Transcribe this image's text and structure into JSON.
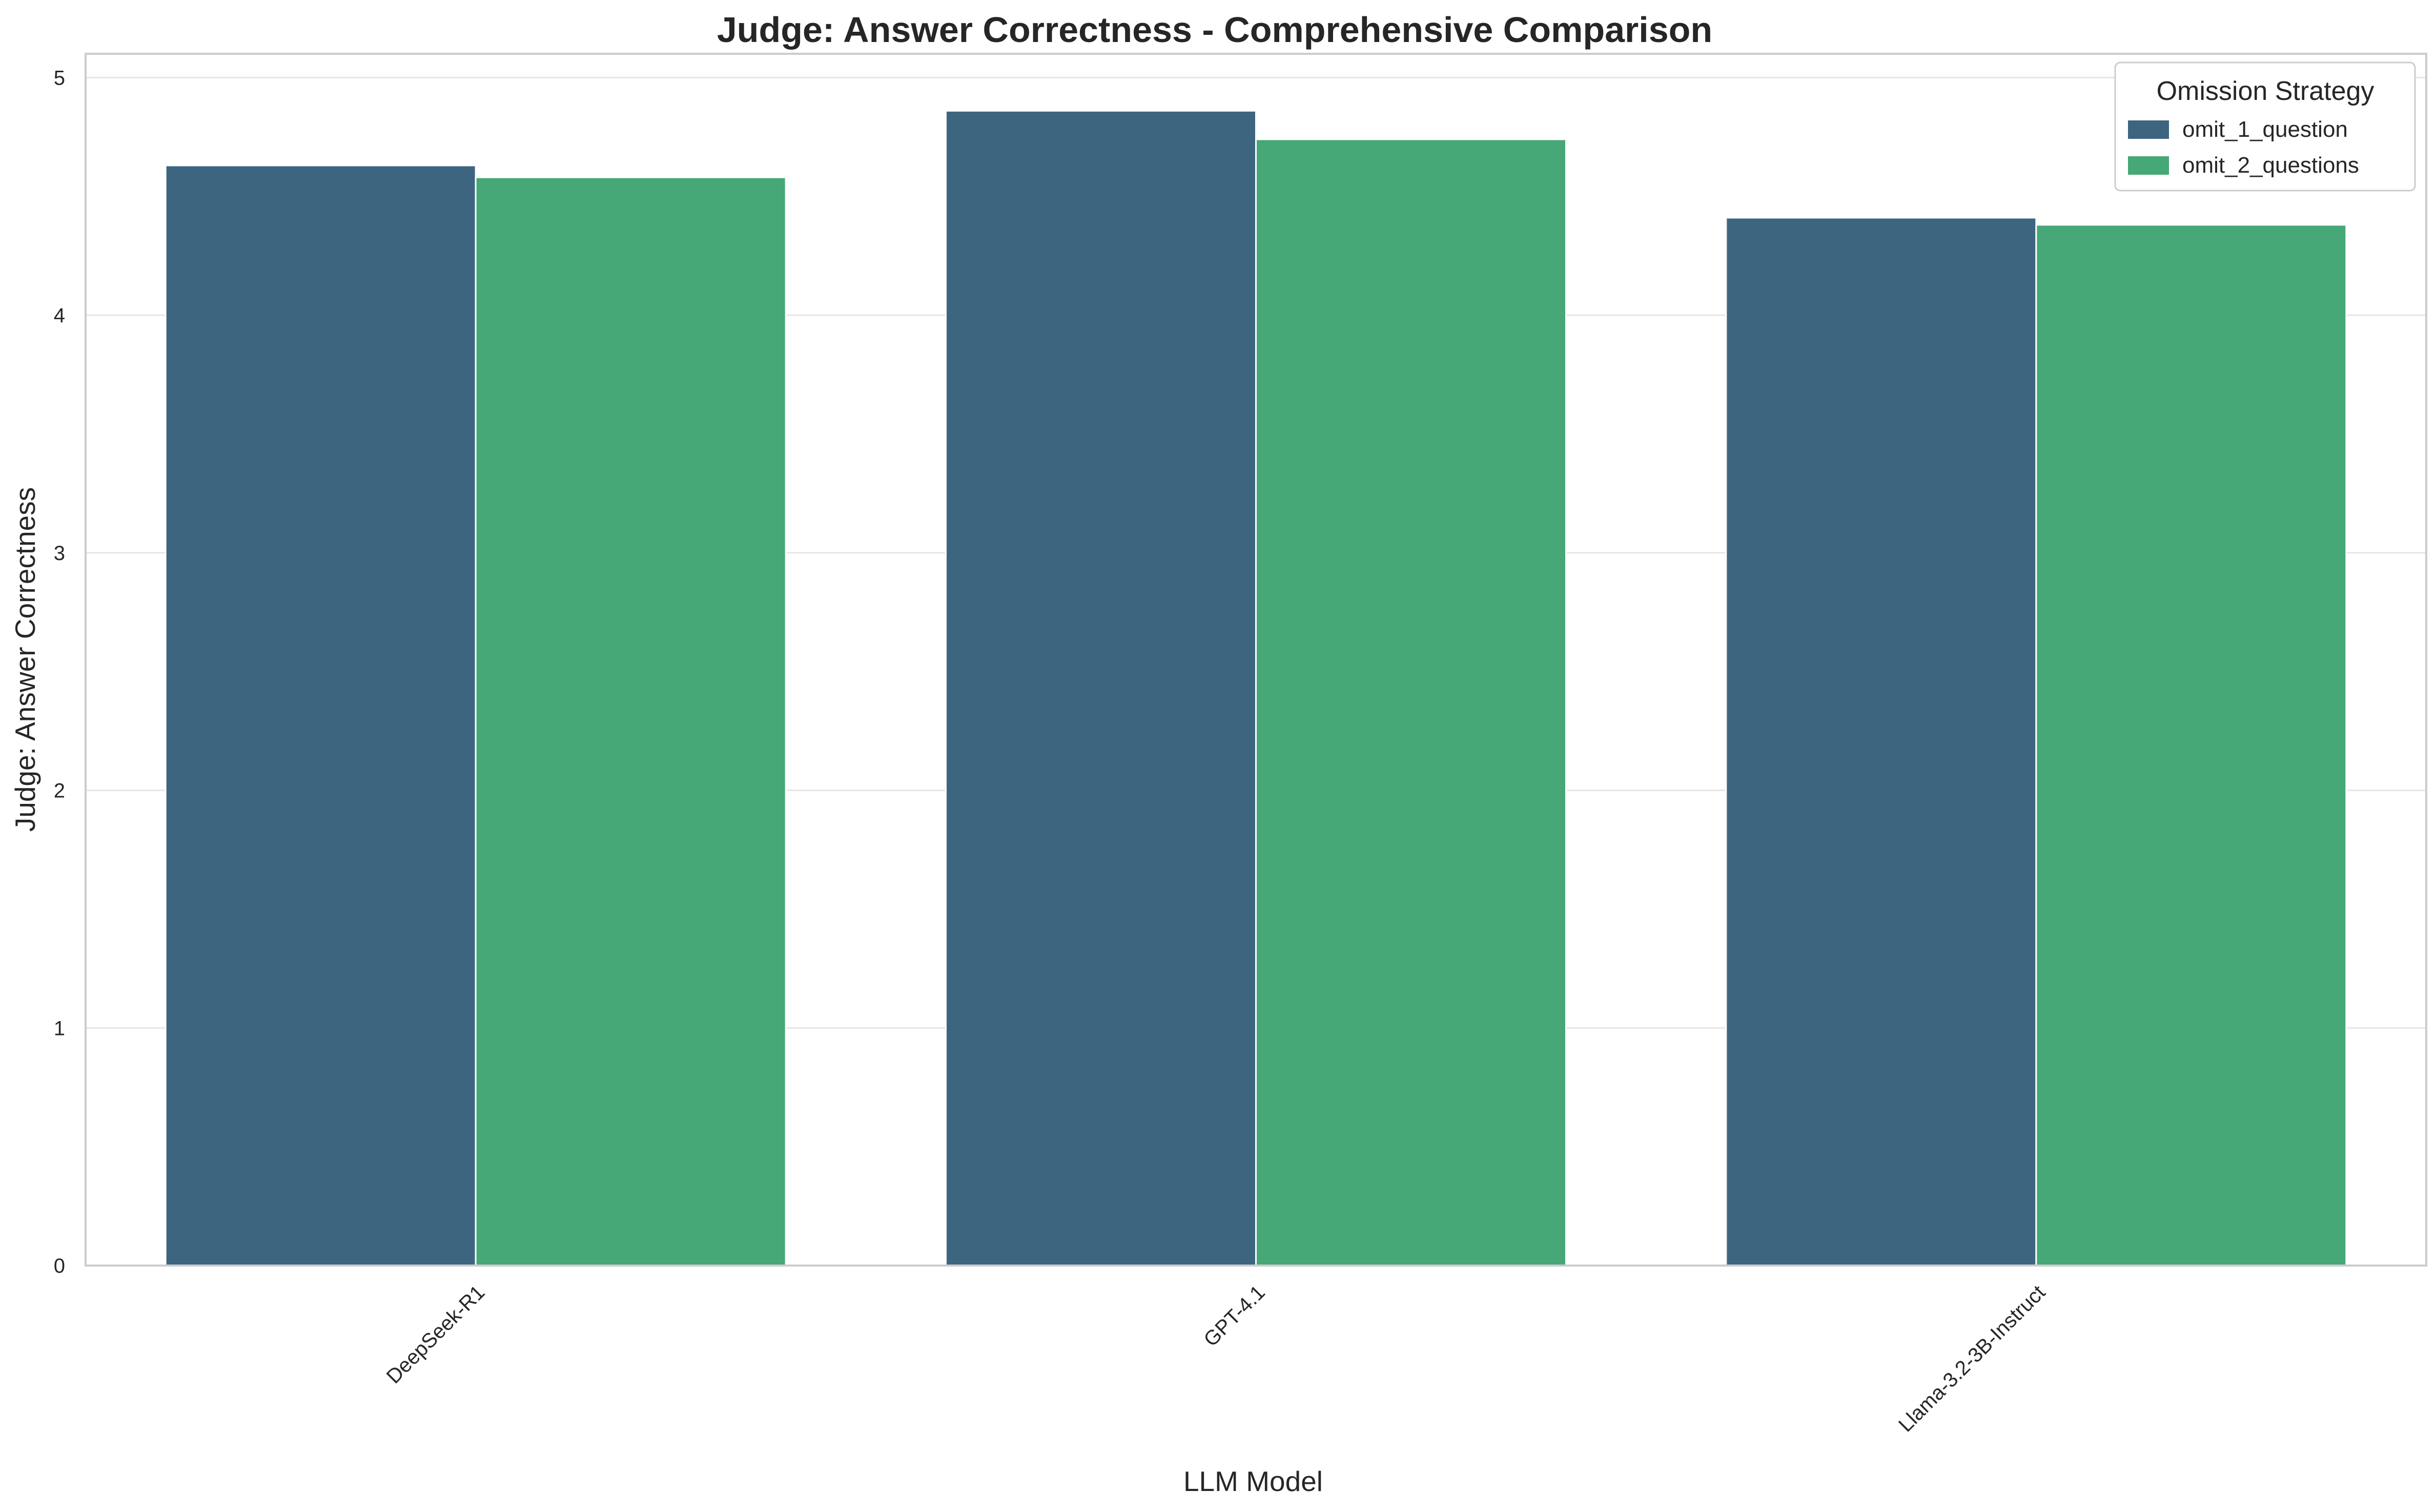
{
  "chart_data": {
    "type": "bar",
    "title": "Judge: Answer Correctness - Comprehensive Comparison",
    "xlabel": "LLM Model",
    "ylabel": "Judge: Answer Correctness",
    "categories": [
      "DeepSeek-R1",
      "GPT-4.1",
      "Llama-3.2-3B-Instruct"
    ],
    "series": [
      {
        "name": "omit_1_question",
        "color": "#3e6580",
        "values": [
          4.63,
          4.86,
          4.41
        ]
      },
      {
        "name": "omit_2_questions",
        "color": "#46a777",
        "values": [
          4.58,
          4.74,
          4.38
        ]
      }
    ],
    "ylim": [
      0,
      5.1
    ],
    "yticks": [
      "0",
      "1",
      "2",
      "3",
      "4",
      "5"
    ],
    "grid": "horizontal",
    "legend": {
      "title": "Omission Strategy",
      "placement": "top-right"
    }
  }
}
